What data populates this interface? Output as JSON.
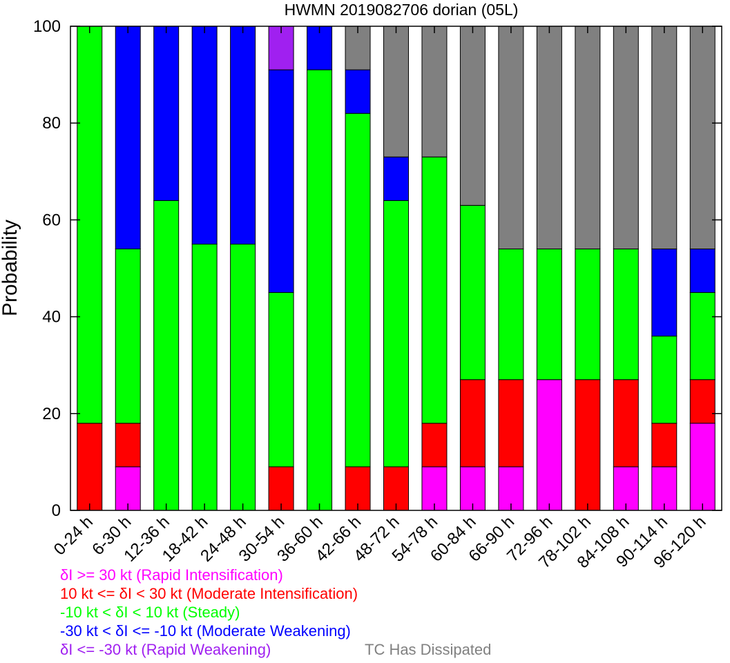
{
  "chart_data": {
    "type": "bar",
    "stacked": true,
    "title": "HWMN 2019082706 dorian (05L)",
    "ylabel": "Probability",
    "ylim": [
      0,
      100
    ],
    "yticks": [
      0,
      20,
      40,
      60,
      80,
      100
    ],
    "categories": [
      "0-24 h",
      "6-30 h",
      "12-36 h",
      "18-42 h",
      "24-48 h",
      "30-54 h",
      "36-60 h",
      "42-66 h",
      "48-72 h",
      "54-78 h",
      "60-84 h",
      "66-90 h",
      "72-96 h",
      "78-102 h",
      "84-108 h",
      "90-114 h",
      "96-120 h"
    ],
    "series": [
      {
        "name": "δI >= 30 kt (Rapid Intensification)",
        "color": "#ff00ff",
        "values": [
          0,
          9,
          0,
          0,
          0,
          0,
          0,
          0,
          0,
          9,
          9,
          9,
          27,
          0,
          9,
          9,
          18
        ]
      },
      {
        "name": "10 kt <= δI < 30 kt (Moderate Intensification)",
        "color": "#ff0000",
        "values": [
          18,
          9,
          0,
          0,
          0,
          9,
          0,
          9,
          9,
          9,
          18,
          18,
          0,
          27,
          18,
          9,
          9
        ]
      },
      {
        "name": "-10 kt < δI < 10 kt (Steady)",
        "color": "#00ff00",
        "values": [
          82,
          36,
          64,
          55,
          55,
          36,
          91,
          73,
          55,
          55,
          36,
          27,
          27,
          27,
          27,
          18,
          18
        ]
      },
      {
        "name": "-30 kt < δI <= -10 kt (Moderate Weakening)",
        "color": "#0000ff",
        "values": [
          0,
          46,
          36,
          45,
          45,
          46,
          9,
          9,
          9,
          0,
          0,
          0,
          0,
          0,
          0,
          18,
          9
        ]
      },
      {
        "name": "δI <= -30 kt (Rapid Weakening)",
        "color": "#a020f0",
        "values": [
          0,
          0,
          0,
          0,
          0,
          9,
          0,
          0,
          0,
          0,
          0,
          0,
          0,
          0,
          0,
          0,
          0
        ]
      },
      {
        "name": "TC Has Dissipated",
        "color": "#808080",
        "values": [
          0,
          0,
          0,
          0,
          0,
          0,
          0,
          9,
          27,
          27,
          37,
          46,
          46,
          46,
          46,
          46,
          46
        ]
      }
    ],
    "grid": false,
    "legend_placement": "bottom"
  }
}
